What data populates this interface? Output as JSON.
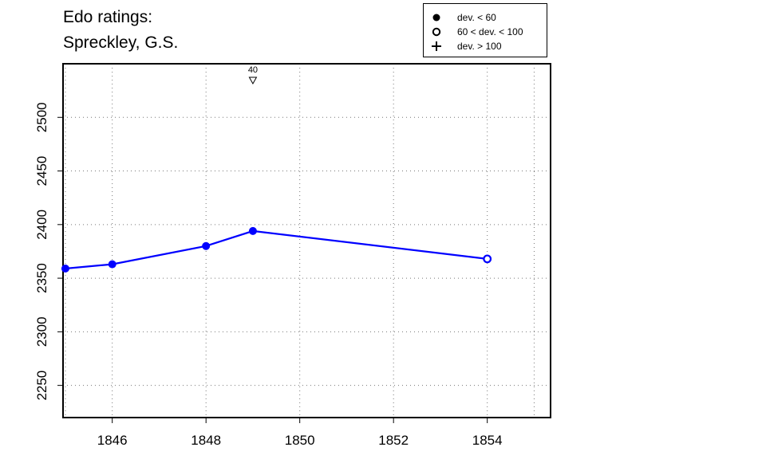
{
  "chart_data": {
    "type": "line",
    "title_lines": [
      "Edo ratings:",
      "Spreckley, G.S."
    ],
    "xlabel": "",
    "ylabel": "",
    "xlim": [
      1844.95,
      1855.35
    ],
    "ylim": [
      2220,
      2550
    ],
    "x_ticks": [
      1846,
      1848,
      1850,
      1852,
      1854
    ],
    "y_ticks": [
      2250,
      2300,
      2350,
      2400,
      2450,
      2500
    ],
    "grid": true,
    "line_color": "#0000ff",
    "series": [
      {
        "points": [
          {
            "x": 1845,
            "y": 2359,
            "dev": "lt60"
          },
          {
            "x": 1846,
            "y": 2363,
            "dev": "lt60"
          },
          {
            "x": 1848,
            "y": 2380,
            "dev": "lt60"
          },
          {
            "x": 1849,
            "y": 2394,
            "dev": "lt60"
          },
          {
            "x": 1854,
            "y": 2368,
            "dev": "60to100"
          }
        ]
      }
    ],
    "annotations": [
      {
        "x": 1849,
        "text": "40",
        "marker": "down-triangle"
      }
    ],
    "legend": {
      "position": "top-right",
      "items": [
        {
          "symbol": "filled-circle",
          "label": "dev. < 60"
        },
        {
          "symbol": "open-circle",
          "label": "60 < dev. < 100"
        },
        {
          "symbol": "plus",
          "label": "dev. > 100"
        }
      ]
    }
  }
}
